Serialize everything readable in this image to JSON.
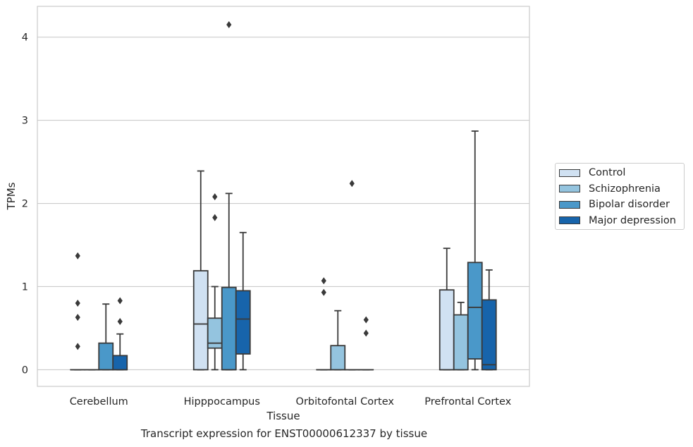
{
  "chart_data": {
    "type": "box",
    "xlabel": "Tissue",
    "ylabel": "TPMs",
    "caption": "Transcript expression for ENST00000612337 by tissue",
    "categories": [
      "Cerebellum",
      "Hipppocampus",
      "Orbitofontal Cortex",
      "Prefrontal Cortex"
    ],
    "yticks": [
      0,
      1,
      2,
      3,
      4
    ],
    "ylim": [
      -0.2,
      4.37
    ],
    "grid": "horizontal",
    "legend_position": "right",
    "series": [
      {
        "name": "Control",
        "color": "#d0e1f2",
        "boxes": [
          {
            "min": 0,
            "q1": 0,
            "median": 0,
            "q3": 0,
            "max": 0,
            "outliers": [
              0.63,
              0.8,
              0.28,
              1.37
            ]
          },
          {
            "min": 0,
            "q1": 0,
            "median": 0.55,
            "q3": 1.19,
            "max": 2.39,
            "outliers": []
          },
          {
            "min": 0,
            "q1": 0,
            "median": 0,
            "q3": 0,
            "max": 0,
            "outliers": [
              1.07,
              0.93
            ]
          },
          {
            "min": 0,
            "q1": 0,
            "median": 0,
            "q3": 0.96,
            "max": 1.46,
            "outliers": []
          }
        ]
      },
      {
        "name": "Schizophrenia",
        "color": "#94c4df",
        "boxes": [
          {
            "min": 0,
            "q1": 0,
            "median": 0,
            "q3": 0,
            "max": 0,
            "outliers": []
          },
          {
            "min": 0,
            "q1": 0.26,
            "median": 0.32,
            "q3": 0.62,
            "max": 1.0,
            "outliers": [
              2.08,
              1.83
            ]
          },
          {
            "min": 0,
            "q1": 0,
            "median": 0,
            "q3": 0.29,
            "max": 0.71,
            "outliers": []
          },
          {
            "min": 0,
            "q1": 0,
            "median": 0,
            "q3": 0.66,
            "max": 0.81,
            "outliers": []
          }
        ]
      },
      {
        "name": "Bipolar disorder",
        "color": "#4a98c9",
        "boxes": [
          {
            "min": 0,
            "q1": 0,
            "median": 0,
            "q3": 0.32,
            "max": 0.79,
            "outliers": []
          },
          {
            "min": 0,
            "q1": 0,
            "median": 0,
            "q3": 0.99,
            "max": 2.12,
            "outliers": [
              4.15
            ]
          },
          {
            "min": 0,
            "q1": 0,
            "median": 0,
            "q3": 0,
            "max": 0,
            "outliers": [
              2.24
            ]
          },
          {
            "min": 0,
            "q1": 0.13,
            "median": 0.75,
            "q3": 1.29,
            "max": 2.87,
            "outliers": []
          }
        ]
      },
      {
        "name": "Major depression",
        "color": "#1764ab",
        "boxes": [
          {
            "min": 0,
            "q1": 0,
            "median": 0,
            "q3": 0.17,
            "max": 0.43,
            "outliers": [
              0.83,
              0.58
            ]
          },
          {
            "min": 0,
            "q1": 0.19,
            "median": 0.61,
            "q3": 0.95,
            "max": 1.65,
            "outliers": []
          },
          {
            "min": 0,
            "q1": 0,
            "median": 0,
            "q3": 0,
            "max": 0,
            "outliers": [
              0.6,
              0.44
            ]
          },
          {
            "min": 0,
            "q1": 0,
            "median": 0.06,
            "q3": 0.84,
            "max": 1.2,
            "outliers": []
          }
        ]
      }
    ]
  }
}
